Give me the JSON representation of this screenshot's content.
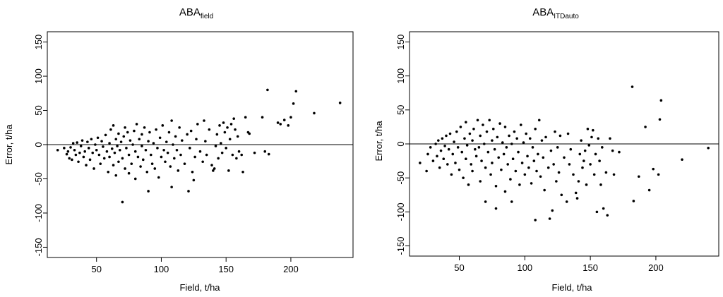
{
  "chart_data": [
    {
      "type": "scatter",
      "title": "ABA",
      "title_subscript": "field",
      "xlabel": "Field, t/ha",
      "ylabel": "Error, t/ha",
      "xlim": [
        12,
        248
      ],
      "ylim": [
        -165,
        165
      ],
      "xticks": [
        50,
        100,
        150,
        200
      ],
      "yticks": [
        -150,
        -100,
        -50,
        0,
        50,
        100,
        150
      ],
      "reference_line_y": 0,
      "grid": false,
      "points": [
        [
          20,
          -8
        ],
        [
          25,
          -5
        ],
        [
          27,
          -14
        ],
        [
          28,
          -10
        ],
        [
          29,
          -20
        ],
        [
          30,
          -4
        ],
        [
          31,
          -22
        ],
        [
          32,
          2
        ],
        [
          33,
          -8
        ],
        [
          34,
          -15
        ],
        [
          35,
          3
        ],
        [
          36,
          -25
        ],
        [
          37,
          -12
        ],
        [
          38,
          -2
        ],
        [
          39,
          6
        ],
        [
          40,
          -18
        ],
        [
          41,
          -10
        ],
        [
          42,
          -30
        ],
        [
          43,
          4
        ],
        [
          44,
          -5
        ],
        [
          45,
          -22
        ],
        [
          46,
          8
        ],
        [
          47,
          -12
        ],
        [
          48,
          -35
        ],
        [
          49,
          0
        ],
        [
          50,
          -8
        ],
        [
          51,
          10
        ],
        [
          52,
          -15
        ],
        [
          53,
          -28
        ],
        [
          54,
          5
        ],
        [
          55,
          -3
        ],
        [
          56,
          -20
        ],
        [
          57,
          14
        ],
        [
          58,
          -10
        ],
        [
          59,
          -40
        ],
        [
          60,
          2
        ],
        [
          60,
          -18
        ],
        [
          61,
          22
        ],
        [
          62,
          -6
        ],
        [
          63,
          -30
        ],
        [
          63,
          28
        ],
        [
          64,
          -12
        ],
        [
          65,
          8
        ],
        [
          65,
          -45
        ],
        [
          66,
          -2
        ],
        [
          67,
          16
        ],
        [
          67,
          -25
        ],
        [
          68,
          -8
        ],
        [
          69,
          4
        ],
        [
          70,
          -84
        ],
        [
          70,
          -20
        ],
        [
          71,
          12
        ],
        [
          72,
          -35
        ],
        [
          72,
          25
        ],
        [
          73,
          -5
        ],
        [
          74,
          18
        ],
        [
          75,
          -15
        ],
        [
          75,
          -42
        ],
        [
          76,
          6
        ],
        [
          77,
          -28
        ],
        [
          78,
          0
        ],
        [
          79,
          20
        ],
        [
          80,
          -10
        ],
        [
          80,
          -50
        ],
        [
          81,
          30
        ],
        [
          82,
          -18
        ],
        [
          83,
          8
        ],
        [
          84,
          -32
        ],
        [
          85,
          -2
        ],
        [
          85,
          15
        ],
        [
          86,
          -22
        ],
        [
          87,
          25
        ],
        [
          88,
          -8
        ],
        [
          89,
          -40
        ],
        [
          90,
          5
        ],
        [
          90,
          -68
        ],
        [
          91,
          18
        ],
        [
          92,
          -15
        ],
        [
          93,
          -28
        ],
        [
          94,
          2
        ],
        [
          95,
          -35
        ],
        [
          96,
          22
        ],
        [
          97,
          -5
        ],
        [
          98,
          -48
        ],
        [
          99,
          10
        ],
        [
          100,
          -18
        ],
        [
          101,
          28
        ],
        [
          102,
          -8
        ],
        [
          103,
          -25
        ],
        [
          104,
          4
        ],
        [
          105,
          -12
        ],
        [
          106,
          18
        ],
        [
          107,
          -32
        ],
        [
          108,
          -62
        ],
        [
          108,
          35
        ],
        [
          109,
          0
        ],
        [
          110,
          -20
        ],
        [
          111,
          12
        ],
        [
          112,
          -8
        ],
        [
          113,
          -38
        ],
        [
          114,
          25
        ],
        [
          115,
          -15
        ],
        [
          116,
          6
        ],
        [
          118,
          -28
        ],
        [
          120,
          15
        ],
        [
          121,
          -68
        ],
        [
          122,
          -5
        ],
        [
          123,
          20
        ],
        [
          124,
          -40
        ],
        [
          125,
          -52
        ],
        [
          126,
          -18
        ],
        [
          127,
          8
        ],
        [
          128,
          30
        ],
        [
          130,
          -10
        ],
        [
          132,
          -25
        ],
        [
          133,
          35
        ],
        [
          134,
          5
        ],
        [
          135,
          -15
        ],
        [
          137,
          22
        ],
        [
          139,
          -30
        ],
        [
          140,
          -38
        ],
        [
          141,
          -35
        ],
        [
          142,
          -2
        ],
        [
          143,
          15
        ],
        [
          144,
          -20
        ],
        [
          145,
          28
        ],
        [
          146,
          2
        ],
        [
          147,
          -12
        ],
        [
          148,
          32
        ],
        [
          149,
          18
        ],
        [
          150,
          -5
        ],
        [
          151,
          25
        ],
        [
          152,
          -38
        ],
        [
          153,
          8
        ],
        [
          154,
          30
        ],
        [
          155,
          -15
        ],
        [
          156,
          38
        ],
        [
          157,
          22
        ],
        [
          158,
          -20
        ],
        [
          159,
          12
        ],
        [
          160,
          -10
        ],
        [
          162,
          -15
        ],
        [
          163,
          -40
        ],
        [
          165,
          40
        ],
        [
          167,
          18
        ],
        [
          168,
          16
        ],
        [
          172,
          -12
        ],
        [
          178,
          40
        ],
        [
          180,
          -10
        ],
        [
          182,
          80
        ],
        [
          183,
          -14
        ],
        [
          190,
          32
        ],
        [
          192,
          30
        ],
        [
          195,
          36
        ],
        [
          198,
          28
        ],
        [
          200,
          40
        ],
        [
          202,
          60
        ],
        [
          204,
          78
        ],
        [
          218,
          46
        ],
        [
          238,
          61
        ]
      ]
    },
    {
      "type": "scatter",
      "title": "ABA",
      "title_subscript": "ITDauto",
      "xlabel": "Field, t/ha",
      "ylabel": "Error, t/ha",
      "xlim": [
        12,
        248
      ],
      "ylim": [
        -165,
        165
      ],
      "xticks": [
        50,
        100,
        150,
        200
      ],
      "yticks": [
        -150,
        -100,
        -50,
        0,
        50,
        100,
        150
      ],
      "reference_line_y": 0,
      "grid": false,
      "points": [
        [
          20,
          -28
        ],
        [
          25,
          -40
        ],
        [
          26,
          -15
        ],
        [
          28,
          -5
        ],
        [
          30,
          -25
        ],
        [
          32,
          0
        ],
        [
          33,
          -18
        ],
        [
          34,
          5
        ],
        [
          35,
          -35
        ],
        [
          36,
          -10
        ],
        [
          37,
          8
        ],
        [
          38,
          -22
        ],
        [
          39,
          -3
        ],
        [
          40,
          12
        ],
        [
          41,
          -30
        ],
        [
          42,
          -8
        ],
        [
          43,
          15
        ],
        [
          44,
          -45
        ],
        [
          45,
          -15
        ],
        [
          46,
          3
        ],
        [
          47,
          -28
        ],
        [
          48,
          18
        ],
        [
          49,
          -5
        ],
        [
          50,
          -38
        ],
        [
          51,
          25
        ],
        [
          52,
          -12
        ],
        [
          53,
          -50
        ],
        [
          54,
          8
        ],
        [
          55,
          -22
        ],
        [
          55,
          32
        ],
        [
          56,
          -2
        ],
        [
          57,
          -60
        ],
        [
          58,
          15
        ],
        [
          59,
          -30
        ],
        [
          60,
          5
        ],
        [
          60,
          -40
        ],
        [
          61,
          22
        ],
        [
          62,
          -8
        ],
        [
          63,
          -18
        ],
        [
          64,
          35
        ],
        [
          65,
          -5
        ],
        [
          66,
          -55
        ],
        [
          66,
          12
        ],
        [
          67,
          -25
        ],
        [
          68,
          28
        ],
        [
          69,
          0
        ],
        [
          70,
          -85
        ],
        [
          70,
          -35
        ],
        [
          71,
          18
        ],
        [
          72,
          -12
        ],
        [
          73,
          35
        ],
        [
          74,
          -45
        ],
        [
          75,
          5
        ],
        [
          75,
          -28
        ],
        [
          76,
          22
        ],
        [
          77,
          -8
        ],
        [
          78,
          -95
        ],
        [
          78,
          -62
        ],
        [
          79,
          10
        ],
        [
          80,
          -20
        ],
        [
          81,
          30
        ],
        [
          82,
          -38
        ],
        [
          83,
          2
        ],
        [
          84,
          -15
        ],
        [
          85,
          -70
        ],
        [
          85,
          25
        ],
        [
          86,
          -5
        ],
        [
          87,
          -30
        ],
        [
          88,
          12
        ],
        [
          89,
          -52
        ],
        [
          90,
          -85
        ],
        [
          90,
          0
        ],
        [
          91,
          -22
        ],
        [
          92,
          18
        ],
        [
          93,
          -40
        ],
        [
          94,
          8
        ],
        [
          95,
          -12
        ],
        [
          96,
          -60
        ],
        [
          97,
          28
        ],
        [
          98,
          -28
        ],
        [
          99,
          2
        ],
        [
          100,
          -45
        ],
        [
          101,
          15
        ],
        [
          102,
          -18
        ],
        [
          103,
          -35
        ],
        [
          104,
          8
        ],
        [
          105,
          -58
        ],
        [
          106,
          -5
        ],
        [
          107,
          -25
        ],
        [
          108,
          -112
        ],
        [
          108,
          22
        ],
        [
          109,
          -40
        ],
        [
          110,
          -15
        ],
        [
          111,
          35
        ],
        [
          112,
          -48
        ],
        [
          113,
          5
        ],
        [
          114,
          -20
        ],
        [
          115,
          -68
        ],
        [
          116,
          10
        ],
        [
          118,
          -35
        ],
        [
          119,
          -110
        ],
        [
          120,
          -10
        ],
        [
          121,
          -98
        ],
        [
          122,
          -30
        ],
        [
          123,
          18
        ],
        [
          124,
          -55
        ],
        [
          125,
          -5
        ],
        [
          126,
          -42
        ],
        [
          127,
          12
        ],
        [
          128,
          -75
        ],
        [
          130,
          -20
        ],
        [
          132,
          -85
        ],
        [
          133,
          15
        ],
        [
          134,
          -30
        ],
        [
          135,
          -8
        ],
        [
          137,
          -45
        ],
        [
          139,
          -72
        ],
        [
          140,
          -80
        ],
        [
          141,
          -55
        ],
        [
          142,
          -15
        ],
        [
          143,
          5
        ],
        [
          144,
          -35
        ],
        [
          145,
          -25
        ],
        [
          146,
          -10
        ],
        [
          147,
          -60
        ],
        [
          148,
          22
        ],
        [
          149,
          -2
        ],
        [
          150,
          -30
        ],
        [
          151,
          10
        ],
        [
          152,
          20
        ],
        [
          153,
          -45
        ],
        [
          154,
          -15
        ],
        [
          155,
          -100
        ],
        [
          156,
          8
        ],
        [
          157,
          -25
        ],
        [
          158,
          -60
        ],
        [
          159,
          -5
        ],
        [
          160,
          -95
        ],
        [
          162,
          -42
        ],
        [
          163,
          -105
        ],
        [
          165,
          8
        ],
        [
          167,
          -10
        ],
        [
          168,
          -45
        ],
        [
          172,
          -12
        ],
        [
          182,
          84
        ],
        [
          183,
          -84
        ],
        [
          187,
          -48
        ],
        [
          192,
          25
        ],
        [
          195,
          -68
        ],
        [
          198,
          -37
        ],
        [
          202,
          -45
        ],
        [
          203,
          36
        ],
        [
          204,
          64
        ],
        [
          220,
          -23
        ],
        [
          240,
          -6
        ]
      ]
    }
  ]
}
